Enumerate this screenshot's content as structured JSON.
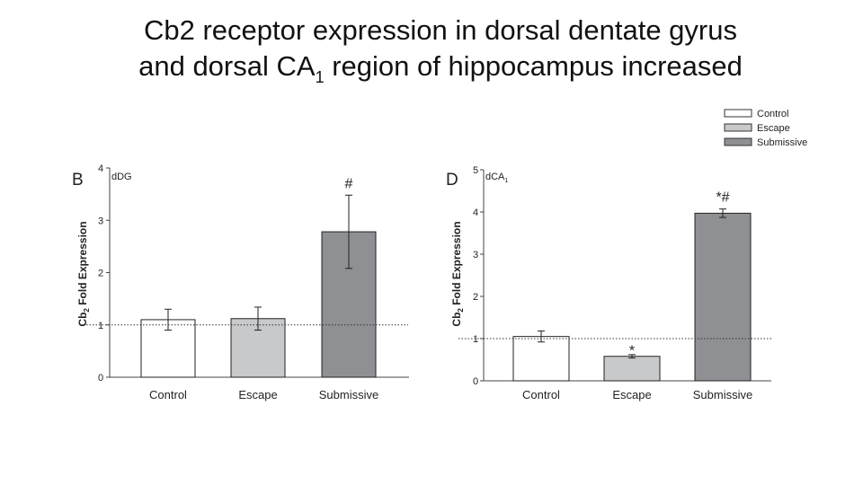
{
  "slide": {
    "title_line1": "Cb2 receptor expression in dorsal dentate gyrus",
    "title_line2_pre": "and dorsal CA",
    "title_line2_sub": "1",
    "title_line2_post": "  region of hippocampus increased"
  },
  "legend": {
    "items": [
      {
        "label": "Control",
        "color": "#ffffff"
      },
      {
        "label": "Escape",
        "color": "#c8c9cb"
      },
      {
        "label": "Submissive",
        "color": "#8f9093"
      }
    ]
  },
  "chart_data": [
    {
      "type": "bar",
      "panel_letter": "B",
      "region_label": "dDG",
      "ylabel_main": "Cb",
      "ylabel_sub": "2",
      "ylabel_rest": " Fold Expression",
      "ylim": [
        0,
        4
      ],
      "yticks": [
        0,
        1,
        2,
        3,
        4
      ],
      "reference_line": 1,
      "categories": [
        "Control",
        "Escape",
        "Submissive"
      ],
      "values": [
        1.1,
        1.12,
        2.78
      ],
      "errors": [
        0.2,
        0.22,
        0.7
      ],
      "annotations": [
        "",
        "",
        "#"
      ],
      "colors": [
        "#ffffff",
        "#c8c9cb",
        "#8f9093"
      ]
    },
    {
      "type": "bar",
      "panel_letter": "D",
      "region_label_main": "dCA",
      "region_label_sub": "1",
      "ylabel_main": "Cb",
      "ylabel_sub": "2",
      "ylabel_rest": " Fold Expression",
      "ylim": [
        0,
        5
      ],
      "yticks": [
        0,
        1,
        2,
        3,
        4,
        5
      ],
      "reference_line": 1,
      "categories": [
        "Control",
        "Escape",
        "Submissive"
      ],
      "values": [
        1.05,
        0.58,
        3.97
      ],
      "errors": [
        0.13,
        0.04,
        0.1
      ],
      "annotations": [
        "",
        "*",
        "*#"
      ],
      "colors": [
        "#ffffff",
        "#c8c9cb",
        "#8f9093"
      ]
    }
  ]
}
